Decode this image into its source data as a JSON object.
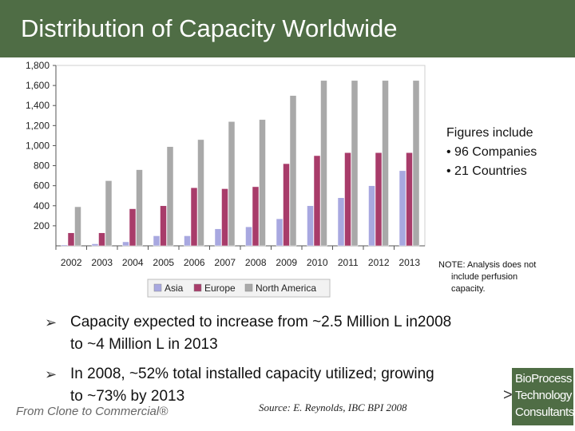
{
  "slide": {
    "title": "Distribution of Capacity Worldwide",
    "figures_heading": "Figures include",
    "figures_items": [
      "• 96 Companies",
      "• 21 Countries"
    ],
    "note_line1": "NOTE: Analysis does not",
    "note_line2": "include perfusion",
    "note_line3": "capacity.",
    "bullet1_line1": "Capacity expected to increase from ~2.5 Million L in2008",
    "bullet1_line2": "to ~4 Million L in 2013",
    "bullet2_line1": "In 2008, ~52% total installed capacity utilized; growing",
    "bullet2_line2": "to ~73% by 2013",
    "footer_left": "From Clone to Commercial®",
    "source": "Source: E. Reynolds, IBC BPI 2008",
    "logo_lines": [
      "BioProcess",
      "Technology",
      "Consultants®"
    ],
    "brand_color": "#4f6d45"
  },
  "chart_data": {
    "type": "bar",
    "categories": [
      "2002",
      "2003",
      "2004",
      "2005",
      "2006",
      "2007",
      "2008",
      "2009",
      "2010",
      "2011",
      "2012",
      "2013"
    ],
    "series": [
      {
        "name": "Asia",
        "color": "#a8a8e0",
        "values": [
          10,
          20,
          40,
          100,
          100,
          170,
          190,
          270,
          400,
          480,
          600,
          750
        ]
      },
      {
        "name": "Europe",
        "color": "#a83c6a",
        "values": [
          130,
          130,
          370,
          400,
          580,
          570,
          590,
          820,
          900,
          930,
          930,
          930
        ]
      },
      {
        "name": "North America",
        "color": "#a9a9a9",
        "values": [
          390,
          650,
          760,
          990,
          1060,
          1240,
          1260,
          1500,
          1650,
          1650,
          1650,
          1650
        ]
      }
    ],
    "ylim": [
      0,
      1800
    ],
    "yticks": [
      200,
      400,
      600,
      800,
      1000,
      1200,
      1400,
      1600,
      1800
    ],
    "ytick_labels": [
      "200",
      "400",
      "600",
      "800",
      "1,000",
      "1,200",
      "1,400",
      "1,600",
      "1,800"
    ],
    "legend_position": "bottom",
    "grid": false
  }
}
